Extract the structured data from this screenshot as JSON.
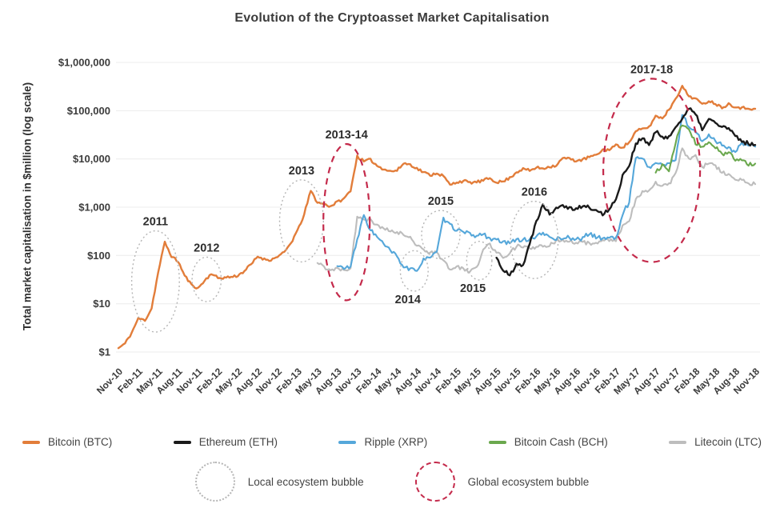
{
  "title": "Evolution of the Cryptoasset Market Capitalisation",
  "y_axis": {
    "label": "Total market capitalisation in $million (log scale)",
    "ticks": [
      "$1,000,000",
      "$100,000",
      "$10,000",
      "$1,000",
      "$100",
      "$10",
      "$1"
    ],
    "tick_values": [
      1000000,
      100000,
      10000,
      1000,
      100,
      10,
      1
    ]
  },
  "x_axis": {
    "ticks": [
      "Nov-10",
      "Feb-11",
      "May-11",
      "Aug-11",
      "Nov-11",
      "Feb-12",
      "May-12",
      "Aug-12",
      "Nov-12",
      "Feb-13",
      "May-13",
      "Aug-13",
      "Nov-13",
      "Feb-14",
      "May-14",
      "Aug-14",
      "Nov-14",
      "Feb-15",
      "May-15",
      "Aug-15",
      "Nov-15",
      "Feb-16",
      "May-16",
      "Aug-16",
      "Nov-16",
      "Feb-17",
      "May-17",
      "Aug-17",
      "Nov-17",
      "Feb-18",
      "May-18",
      "Aug-18",
      "Nov-18"
    ]
  },
  "colors": {
    "grid": "#ececec",
    "axis_text": "#3c3c3c",
    "local_bubble": "#b5b5b5",
    "global_bubble": "#c42a4b"
  },
  "chart_data": {
    "type": "line",
    "x_unit": "months from Nov-2010 (index 0) to Nov-2018 (index 96)",
    "y_unit": "total market capitalisation in $million, log scale",
    "ylim": [
      1,
      1000000
    ],
    "grid": "horizontal",
    "legend_position": "bottom",
    "series": [
      {
        "name": "Bitcoin (BTC)",
        "color": "#E27D3A",
        "start_month": "Nov-10",
        "start_index": 0,
        "values": [
          1.2,
          1.5,
          2.5,
          5,
          4.5,
          8,
          45,
          190,
          95,
          75,
          38,
          25,
          21,
          30,
          42,
          34,
          35,
          36,
          38,
          48,
          65,
          95,
          85,
          80,
          95,
          115,
          180,
          330,
          700,
          2200,
          1250,
          1150,
          1050,
          1300,
          1500,
          2200,
          11500,
          8800,
          9800,
          7200,
          6200,
          5600,
          5700,
          8100,
          7700,
          6400,
          5300,
          4600,
          5100,
          4400,
          2900,
          3300,
          3500,
          3250,
          3300,
          3550,
          4000,
          3300,
          3400,
          4100,
          5300,
          6300,
          5700,
          6600,
          6400,
          6900,
          7300,
          10400,
          10200,
          9100,
          9700,
          11000,
          11900,
          15500,
          15500,
          19500,
          17500,
          22000,
          37000,
          42000,
          46000,
          78000,
          70000,
          105000,
          180000,
          320000,
          200000,
          180000,
          135000,
          160000,
          140000,
          115000,
          140000,
          120000,
          115000,
          112000,
          110000
        ]
      },
      {
        "name": "Ethereum (ETH)",
        "color": "#1A1A1A",
        "start_month": "Aug-15",
        "start_index": 57,
        "values": [
          90,
          50,
          38,
          70,
          63,
          170,
          520,
          1150,
          730,
          1000,
          1150,
          980,
          950,
          1050,
          980,
          860,
          700,
          940,
          1400,
          4600,
          7300,
          21000,
          26500,
          19500,
          36000,
          28500,
          29500,
          44000,
          71000,
          110000,
          83000,
          41000,
          66000,
          56000,
          46000,
          43000,
          29000,
          23000,
          21000,
          19500
        ]
      },
      {
        "name": "Ripple (XRP)",
        "color": "#55A7DA",
        "start_month": "Aug-13",
        "start_index": 33,
        "values": [
          60,
          55,
          58,
          210,
          680,
          340,
          240,
          170,
          125,
          95,
          58,
          52,
          46,
          88,
          92,
          115,
          580,
          430,
          340,
          300,
          280,
          255,
          275,
          230,
          205,
          190,
          175,
          225,
          205,
          220,
          250,
          285,
          245,
          215,
          230,
          235,
          215,
          230,
          285,
          235,
          230,
          235,
          225,
          690,
          1300,
          11000,
          10200,
          6700,
          8100,
          7600,
          7900,
          9600,
          83000,
          47000,
          36000,
          23000,
          32000,
          24000,
          19500,
          17500,
          13500,
          21500,
          18500,
          18000
        ]
      },
      {
        "name": "Bitcoin Cash (BCH)",
        "color": "#6BA84E",
        "start_month": "Aug-17",
        "start_index": 81,
        "values": [
          5200,
          7600,
          5600,
          22000,
          52000,
          41000,
          21000,
          17000,
          23000,
          17500,
          13000,
          13500,
          9200,
          9600,
          7600,
          8000
        ]
      },
      {
        "name": "Litecoin (LTC)",
        "color": "#BDBDBD",
        "start_month": "May-13",
        "start_index": 30,
        "values": [
          70,
          58,
          50,
          56,
          50,
          56,
          620,
          580,
          560,
          420,
          360,
          310,
          300,
          270,
          235,
          165,
          135,
          115,
          115,
          78,
          52,
          58,
          52,
          47,
          56,
          130,
          175,
          115,
          92,
          115,
          155,
          150,
          140,
          150,
          150,
          160,
          200,
          215,
          195,
          180,
          185,
          180,
          180,
          210,
          200,
          195,
          420,
          520,
          1500,
          2100,
          2300,
          3300,
          2800,
          3000,
          4900,
          16500,
          9800,
          12000,
          6800,
          8200,
          7200,
          5200,
          4800,
          3600,
          3600,
          3200,
          3000
        ]
      }
    ],
    "annotations": [
      {
        "label": "2011",
        "type": "local",
        "t": 5.6,
        "v": 29,
        "rx_months": 3.6,
        "ry_decades": 1.05,
        "label_pos": "top"
      },
      {
        "label": "2012",
        "type": "local",
        "t": 13.3,
        "v": 32,
        "rx_months": 2.2,
        "ry_decades": 0.46,
        "label_pos": "top"
      },
      {
        "label": "2013",
        "type": "local",
        "t": 27.6,
        "v": 520,
        "rx_months": 3.3,
        "ry_decades": 0.85,
        "label_pos": "top"
      },
      {
        "label": "2013-14",
        "type": "global",
        "t": 34.4,
        "v": 490,
        "rx_months": 3.5,
        "ry_decades": 1.62,
        "label_pos": "top"
      },
      {
        "label": "2014",
        "type": "local",
        "t": 44.6,
        "v": 48,
        "rx_months": 2.1,
        "ry_decades": 0.42,
        "label_pos": "bottom"
      },
      {
        "label": "2015",
        "type": "local",
        "t": 48.6,
        "v": 270,
        "rx_months": 2.9,
        "ry_decades": 0.5,
        "label_pos": "top"
      },
      {
        "label": "2015",
        "type": "local",
        "t": 54.4,
        "v": 78,
        "rx_months": 1.9,
        "ry_decades": 0.4,
        "label_pos": "bottom"
      },
      {
        "label": "2016",
        "type": "local",
        "t": 62.7,
        "v": 210,
        "rx_months": 3.6,
        "ry_decades": 0.8,
        "label_pos": "top"
      },
      {
        "label": "2017-18",
        "type": "global",
        "t": 80.4,
        "v": 5800,
        "rx_months": 7.3,
        "ry_decades": 1.9,
        "label_pos": "top"
      }
    ]
  },
  "legend": {
    "bubbles": [
      {
        "label": "Local ecosystem bubble",
        "style": "dotted-gray"
      },
      {
        "label": "Global ecosystem bubble",
        "style": "dashed-red"
      }
    ]
  }
}
